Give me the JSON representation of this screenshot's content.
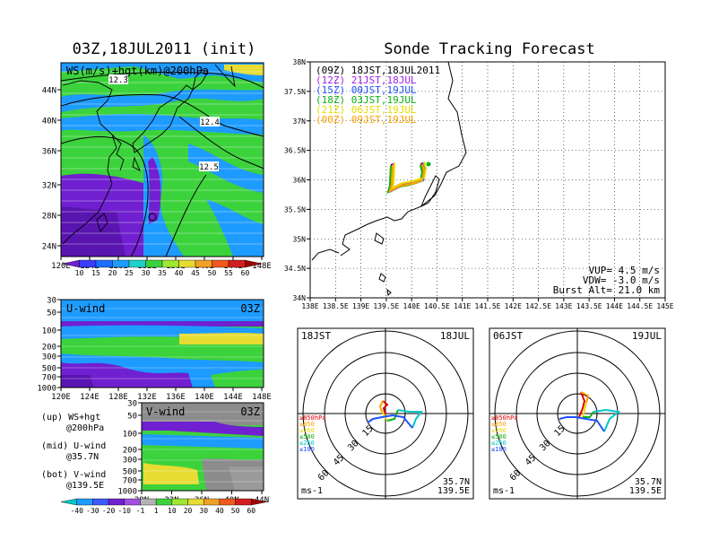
{
  "left_title": "03Z,18JUL2011 (init)",
  "right_title": "Sonde Tracking Forecast",
  "colors": {
    "low": "#7020d0",
    "mid": "#1e9bff",
    "hi": "#3cd23c",
    "jet": "#e6dc32",
    "max": "#c8c8c8"
  },
  "legend_text": {
    "up": "(up) WS+hgt",
    "up2": "@200hPa",
    "mid": "(mid) U-wind",
    "mid2": "@35.7N",
    "bot": "(bot) V-wind",
    "bot2": "@139.5E"
  },
  "chart_data": [
    {
      "type": "heatmap",
      "name": "ws200",
      "title": "WS(m/s)+hgt(km)@200hPa",
      "x_ticks": [
        "120E",
        "124E",
        "128E",
        "132E",
        "136E",
        "140E",
        "144E",
        "148E"
      ],
      "y_ticks": [
        "44N",
        "40N",
        "36N",
        "32N",
        "28N",
        "24N"
      ],
      "contour_labels": [
        "12.3",
        "12.4",
        "12.5"
      ],
      "colorbar": [
        "10",
        "15",
        "20",
        "25",
        "30",
        "35",
        "40",
        "45",
        "50",
        "55",
        "60"
      ]
    },
    {
      "type": "heatmap",
      "name": "uwind",
      "title": "U-wind",
      "time": "03Z",
      "x_ticks": [
        "120E",
        "124E",
        "128E",
        "132E",
        "136E",
        "140E",
        "144E",
        "148E"
      ],
      "y_ticks": [
        "30",
        "50",
        "100",
        "200",
        "300",
        "500",
        "700",
        "1000"
      ]
    },
    {
      "type": "heatmap",
      "name": "vwind",
      "title": "V-wind",
      "time": "03Z",
      "x_ticks": [
        "28N",
        "32N",
        "36N",
        "40N",
        "44N"
      ],
      "y_ticks": [
        "30",
        "50",
        "100",
        "200",
        "300",
        "500",
        "700",
        "1000"
      ],
      "colorbar": [
        "-40",
        "-30",
        "-20",
        "-10",
        "-1",
        "1",
        "10",
        "20",
        "30",
        "40",
        "50",
        "60"
      ]
    },
    {
      "type": "line",
      "name": "track",
      "x_ticks": [
        "138E",
        "138.5E",
        "139E",
        "139.5E",
        "140E",
        "140.5E",
        "141E",
        "141.5E",
        "142E",
        "142.5E",
        "143E",
        "143.5E",
        "144E",
        "144.5E",
        "145E"
      ],
      "y_ticks": [
        "38N",
        "37.5N",
        "37N",
        "36.5N",
        "36N",
        "35.5N",
        "35N",
        "34.5N",
        "34N"
      ],
      "series": [
        {
          "name": "(09Z) 18JST,18JUL2011",
          "color": "#000000"
        },
        {
          "name": "(12Z) 21JST,18JUL",
          "color": "#a020f0"
        },
        {
          "name": "(15Z) 00JST,19JUL",
          "color": "#1e50ff"
        },
        {
          "name": "(18Z) 03JST,19JUL",
          "color": "#10b010"
        },
        {
          "name": "(21Z) 06JST,19JUL",
          "color": "#e6dc00"
        },
        {
          "name": "(00Z) 09JST,19JUL",
          "color": "#ffa000"
        }
      ],
      "info": [
        "VUP= 4.5 m/s",
        "VDW= -3.0 m/s",
        "Burst Alt= 21.0 km"
      ]
    },
    {
      "type": "line",
      "name": "hodo1",
      "title_left": "18JST",
      "title_right": "18JUL",
      "rings": [
        "15",
        "30",
        "45",
        "60"
      ],
      "levels": [
        "≥850hPa",
        "≤850",
        "≤700",
        "≤500",
        "≤250",
        "≤100"
      ],
      "unit": "ms-1",
      "loc": [
        "35.7N",
        "139.5E"
      ]
    },
    {
      "type": "line",
      "name": "hodo2",
      "title_left": "06JST",
      "title_right": "19JUL",
      "rings": [
        "15",
        "30",
        "45",
        "60"
      ],
      "levels": [
        "≥850hPa",
        "≤850",
        "≤700",
        "≤500",
        "≤250",
        "≤100"
      ],
      "unit": "ms-1",
      "loc": [
        "35.7N",
        "139.5E"
      ]
    }
  ]
}
